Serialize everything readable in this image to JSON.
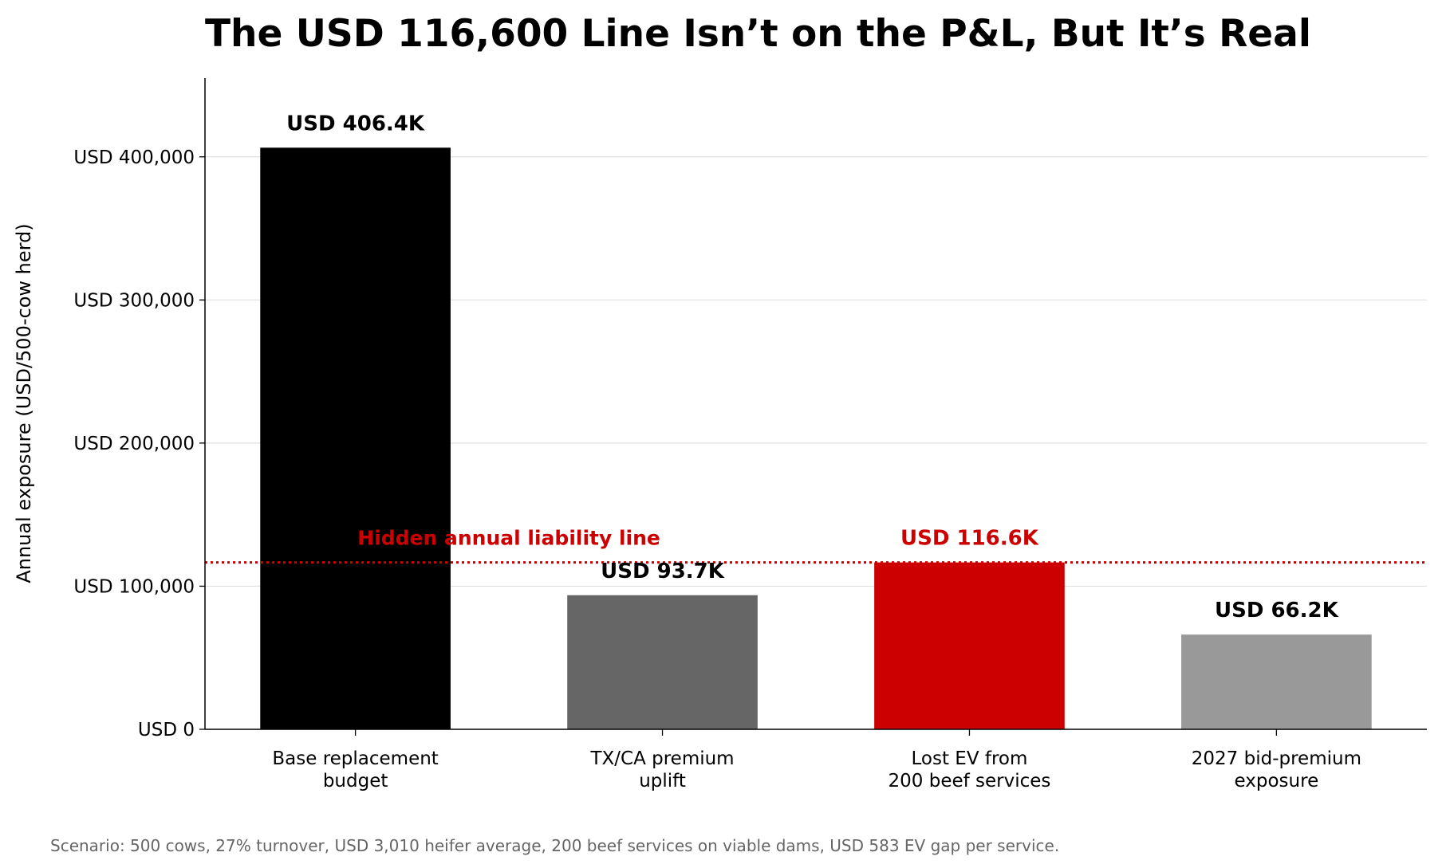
{
  "chart_data": {
    "type": "bar",
    "title": "The USD 116,600 Line Isn’t on the P&L, But It’s Real",
    "ylabel": "Annual exposure (USD/500-cow herd)",
    "xlabel": "",
    "categories": [
      [
        "Base replacement",
        "budget"
      ],
      [
        "TX/CA premium",
        "uplift"
      ],
      [
        "Lost EV from",
        "200 beef services"
      ],
      [
        "2027 bid-premium",
        "exposure"
      ]
    ],
    "values": [
      406400,
      93700,
      116600,
      66200
    ],
    "data_labels": [
      "USD 406.4K",
      "USD 93.7K",
      "USD 116.6K",
      "USD 66.2K"
    ],
    "bar_colors": [
      "#000000",
      "#666666",
      "#cc0000",
      "#999999"
    ],
    "data_label_colors": [
      "#000000",
      "#000000",
      "#cc0000",
      "#000000"
    ],
    "ylim": [
      0,
      455000
    ],
    "yticks": [
      0,
      100000,
      200000,
      300000,
      400000
    ],
    "ytick_labels": [
      "USD 0",
      "USD 100,000",
      "USD 200,000",
      "USD 300,000",
      "USD 400,000"
    ],
    "grid": "horizontal",
    "reference_line": {
      "value": 116600,
      "label": "Hidden annual liability line",
      "color": "#cc0000",
      "style": "dotted"
    },
    "footnote": "Scenario: 500 cows, 27% turnover, USD 3,010 heifer average, 200 beef services on viable dams, USD 583 EV gap per service."
  }
}
